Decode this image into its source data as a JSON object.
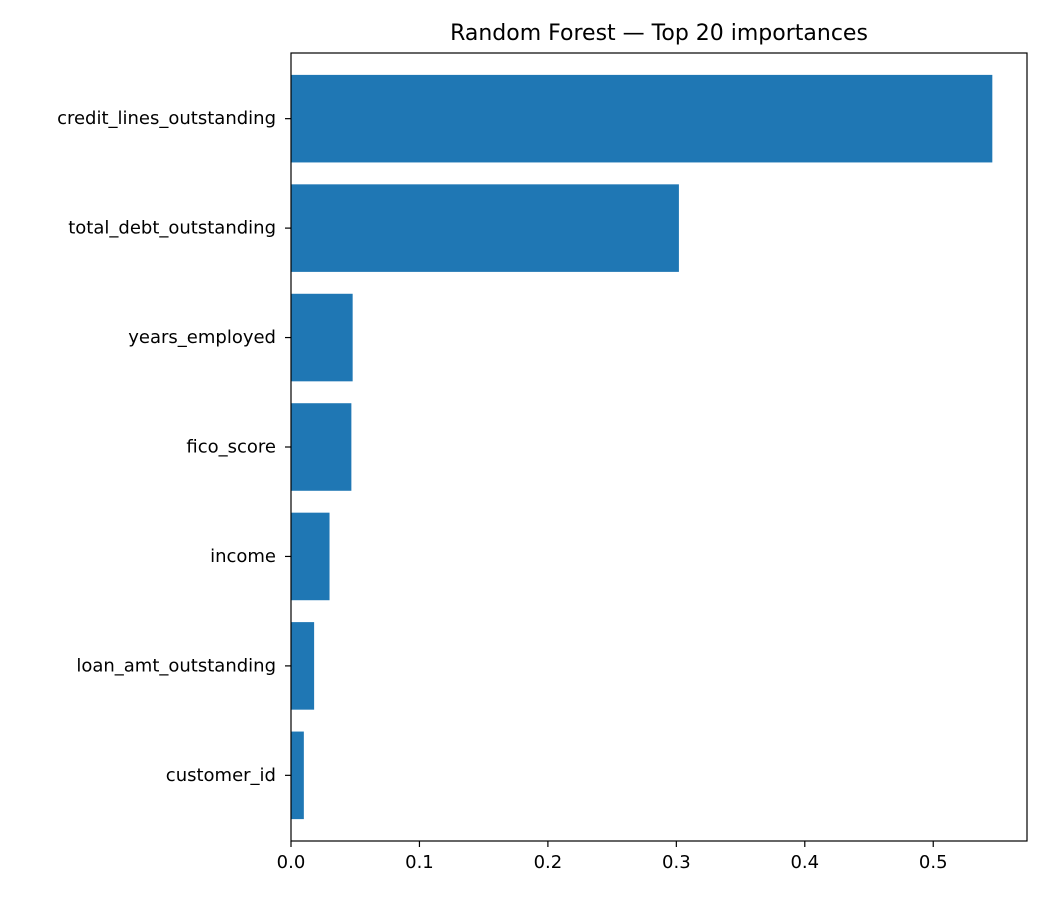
{
  "chart_data": {
    "type": "bar",
    "orientation": "horizontal",
    "title": "Random Forest — Top 20 importances",
    "xlabel": "",
    "ylabel": "",
    "categories": [
      "credit_lines_outstanding",
      "total_debt_outstanding",
      "years_employed",
      "fico_score",
      "income",
      "loan_amt_outstanding",
      "customer_id"
    ],
    "values": [
      0.546,
      0.302,
      0.048,
      0.047,
      0.03,
      0.018,
      0.01
    ],
    "xlim": [
      0.0,
      0.573
    ],
    "xticks": [
      {
        "value": 0.0,
        "label": "0.0"
      },
      {
        "value": 0.1,
        "label": "0.1"
      },
      {
        "value": 0.2,
        "label": "0.2"
      },
      {
        "value": 0.3,
        "label": "0.3"
      },
      {
        "value": 0.4,
        "label": "0.4"
      },
      {
        "value": 0.5,
        "label": "0.5"
      }
    ],
    "grid": false,
    "legend": "none",
    "bar_color": "#1f77b4"
  }
}
